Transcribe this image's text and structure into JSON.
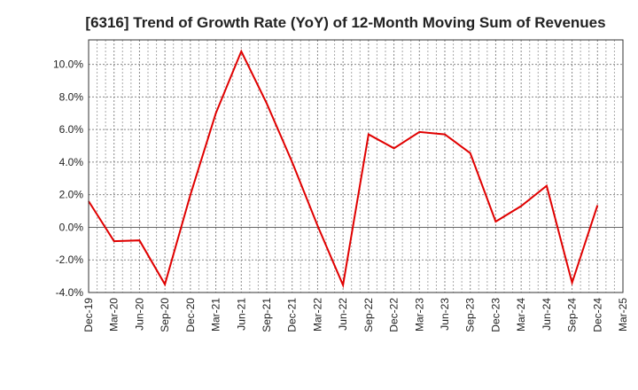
{
  "chart_data": {
    "type": "line",
    "title": "[6316]  Trend of Growth Rate (YoY) of 12-Month Moving Sum of Revenues",
    "xlabel": "",
    "ylabel": "",
    "categories": [
      "Dec-19",
      "Mar-20",
      "Jun-20",
      "Sep-20",
      "Dec-20",
      "Mar-21",
      "Jun-21",
      "Sep-21",
      "Dec-21",
      "Mar-22",
      "Jun-22",
      "Sep-22",
      "Dec-22",
      "Mar-23",
      "Jun-23",
      "Sep-23",
      "Dec-23",
      "Mar-24",
      "Jun-24",
      "Sep-24",
      "Dec-24",
      "Mar-25"
    ],
    "series": [
      {
        "values": [
          1.6,
          -0.85,
          -0.8,
          -3.5,
          2.0,
          7.0,
          10.8,
          7.6,
          4.0,
          0.1,
          -3.55,
          5.7,
          4.85,
          5.85,
          5.7,
          4.55,
          0.35,
          1.3,
          2.55,
          -3.4,
          1.35,
          null
        ]
      }
    ],
    "yticks": [
      "10.0%",
      "8.0%",
      "6.0%",
      "4.0%",
      "2.0%",
      "0.0%",
      "-2.0%",
      "-4.0%"
    ],
    "ytick_values": [
      10,
      8,
      6,
      4,
      2,
      0,
      -2,
      -4
    ],
    "ylim": [
      -4,
      11.5
    ],
    "grid": true,
    "line_color": "#e00000"
  }
}
